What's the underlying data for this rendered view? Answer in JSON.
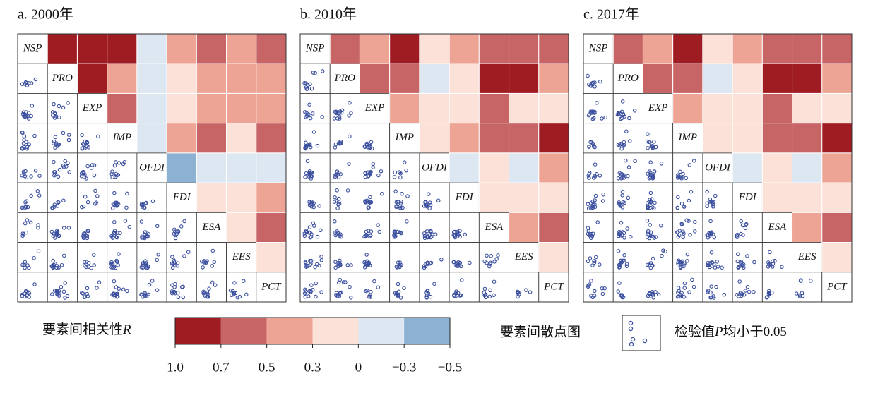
{
  "chart_data": {
    "type": "correlogram",
    "variables": [
      "NSP",
      "PRO",
      "EXP",
      "IMP",
      "OFDI",
      "FDI",
      "ESA",
      "EES",
      "PCT"
    ],
    "panels": [
      {
        "title": "a. 2000年",
        "r": [
          [
            0.85,
            0.85,
            0.85,
            -0.15,
            0.4,
            0.6,
            0.4,
            0.6
          ],
          [
            0.85,
            0.4,
            -0.15,
            0.15,
            0.4,
            0.4,
            0.4
          ],
          [
            0.6,
            -0.15,
            0.15,
            0.4,
            0.4,
            0.4
          ],
          [
            -0.15,
            0.4,
            0.6,
            0.15,
            0.6
          ],
          [
            -0.4,
            -0.15,
            -0.15,
            -0.15
          ],
          [
            0.15,
            0.15,
            0.4
          ],
          [
            0.15,
            0.6
          ],
          [
            0.15
          ]
        ]
      },
      {
        "title": "b. 2010年",
        "r": [
          [
            0.6,
            0.4,
            0.85,
            0.15,
            0.4,
            0.6,
            0.6,
            0.6
          ],
          [
            0.6,
            0.6,
            -0.15,
            0.15,
            0.85,
            0.85,
            0.4
          ],
          [
            0.4,
            0.15,
            0.15,
            0.6,
            0.15,
            0.15
          ],
          [
            0.15,
            0.4,
            0.6,
            0.6,
            0.85
          ],
          [
            -0.15,
            0.15,
            -0.15,
            0.4
          ],
          [
            0.15,
            0.15,
            0.15
          ],
          [
            0.4,
            0.6
          ],
          [
            0.15
          ]
        ]
      },
      {
        "title": "c. 2017年",
        "r": [
          [
            0.6,
            0.4,
            0.85,
            0.15,
            0.4,
            0.6,
            0.6,
            0.6
          ],
          [
            0.6,
            0.6,
            -0.15,
            0.15,
            0.85,
            0.85,
            0.4
          ],
          [
            0.4,
            0.15,
            0.15,
            0.6,
            0.15,
            0.15
          ],
          [
            0.15,
            0.15,
            0.6,
            0.6,
            0.85
          ],
          [
            -0.15,
            0.15,
            -0.15,
            0.4
          ],
          [
            0.15,
            0.15,
            0.15
          ],
          [
            0.4,
            0.6
          ],
          [
            0.15
          ]
        ]
      }
    ],
    "colorbar": {
      "label": "要素间相关性",
      "label_symbol": "R",
      "ticks": [
        {
          "value": 1,
          "label": "1.0"
        },
        0.7,
        0.5,
        0.3,
        0,
        {
          "value": -0.3,
          "label": "−0.3"
        },
        {
          "value": -0.5,
          "label": "−0.5"
        }
      ],
      "colors": [
        "#9e1c22",
        "#c76466",
        "#eda494",
        "#fbe1d7",
        "#dce7f1",
        "#8db1d2"
      ]
    },
    "scatter_legend": {
      "label": "要素间散点图",
      "note": "检验值",
      "note_symbol": "P",
      "note_rest": "均小于0.05"
    }
  }
}
